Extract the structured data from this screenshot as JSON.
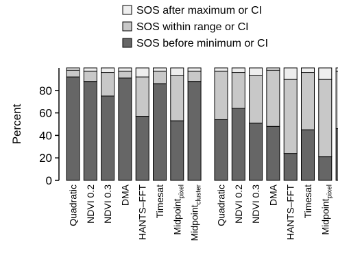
{
  "chart_data": {
    "type": "bar",
    "stacked": true,
    "ylabel": "Percent",
    "ylim": [
      0,
      100
    ],
    "yticks": [
      0,
      20,
      40,
      60,
      80
    ],
    "legend": {
      "placement": "top",
      "entries": [
        {
          "key": "after",
          "name": "SOS after maximum or CI",
          "color": "#eeeeee"
        },
        {
          "key": "within",
          "name": "SOS within range or CI",
          "color": "#c8c8c8"
        },
        {
          "key": "before",
          "name": "SOS before minimum or CI",
          "color": "#666666"
        }
      ]
    },
    "categories": [
      {
        "main": "Quadratic",
        "sub": ""
      },
      {
        "main": "NDVI 0.2",
        "sub": ""
      },
      {
        "main": "NDVI 0.3",
        "sub": ""
      },
      {
        "main": "DMA",
        "sub": ""
      },
      {
        "main": "HANTS–FFT",
        "sub": ""
      },
      {
        "main": "Timesat",
        "sub": ""
      },
      {
        "main": "Midpoint",
        "sub": "pixel"
      },
      {
        "main": "Midpoint",
        "sub": "cluster"
      }
    ],
    "panels": [
      {
        "before": [
          92,
          88,
          75,
          91,
          57,
          86,
          53,
          88
        ],
        "within": [
          6,
          9,
          21,
          6,
          35,
          11,
          40,
          9
        ],
        "after": [
          2,
          3,
          4,
          3,
          8,
          3,
          7,
          3
        ]
      },
      {
        "before": [
          54,
          64,
          51,
          48,
          24,
          45,
          21,
          46
        ],
        "within": [
          43,
          32,
          42,
          50,
          66,
          51,
          69,
          51
        ],
        "after": [
          3,
          4,
          7,
          2,
          10,
          4,
          10,
          3
        ]
      }
    ]
  }
}
